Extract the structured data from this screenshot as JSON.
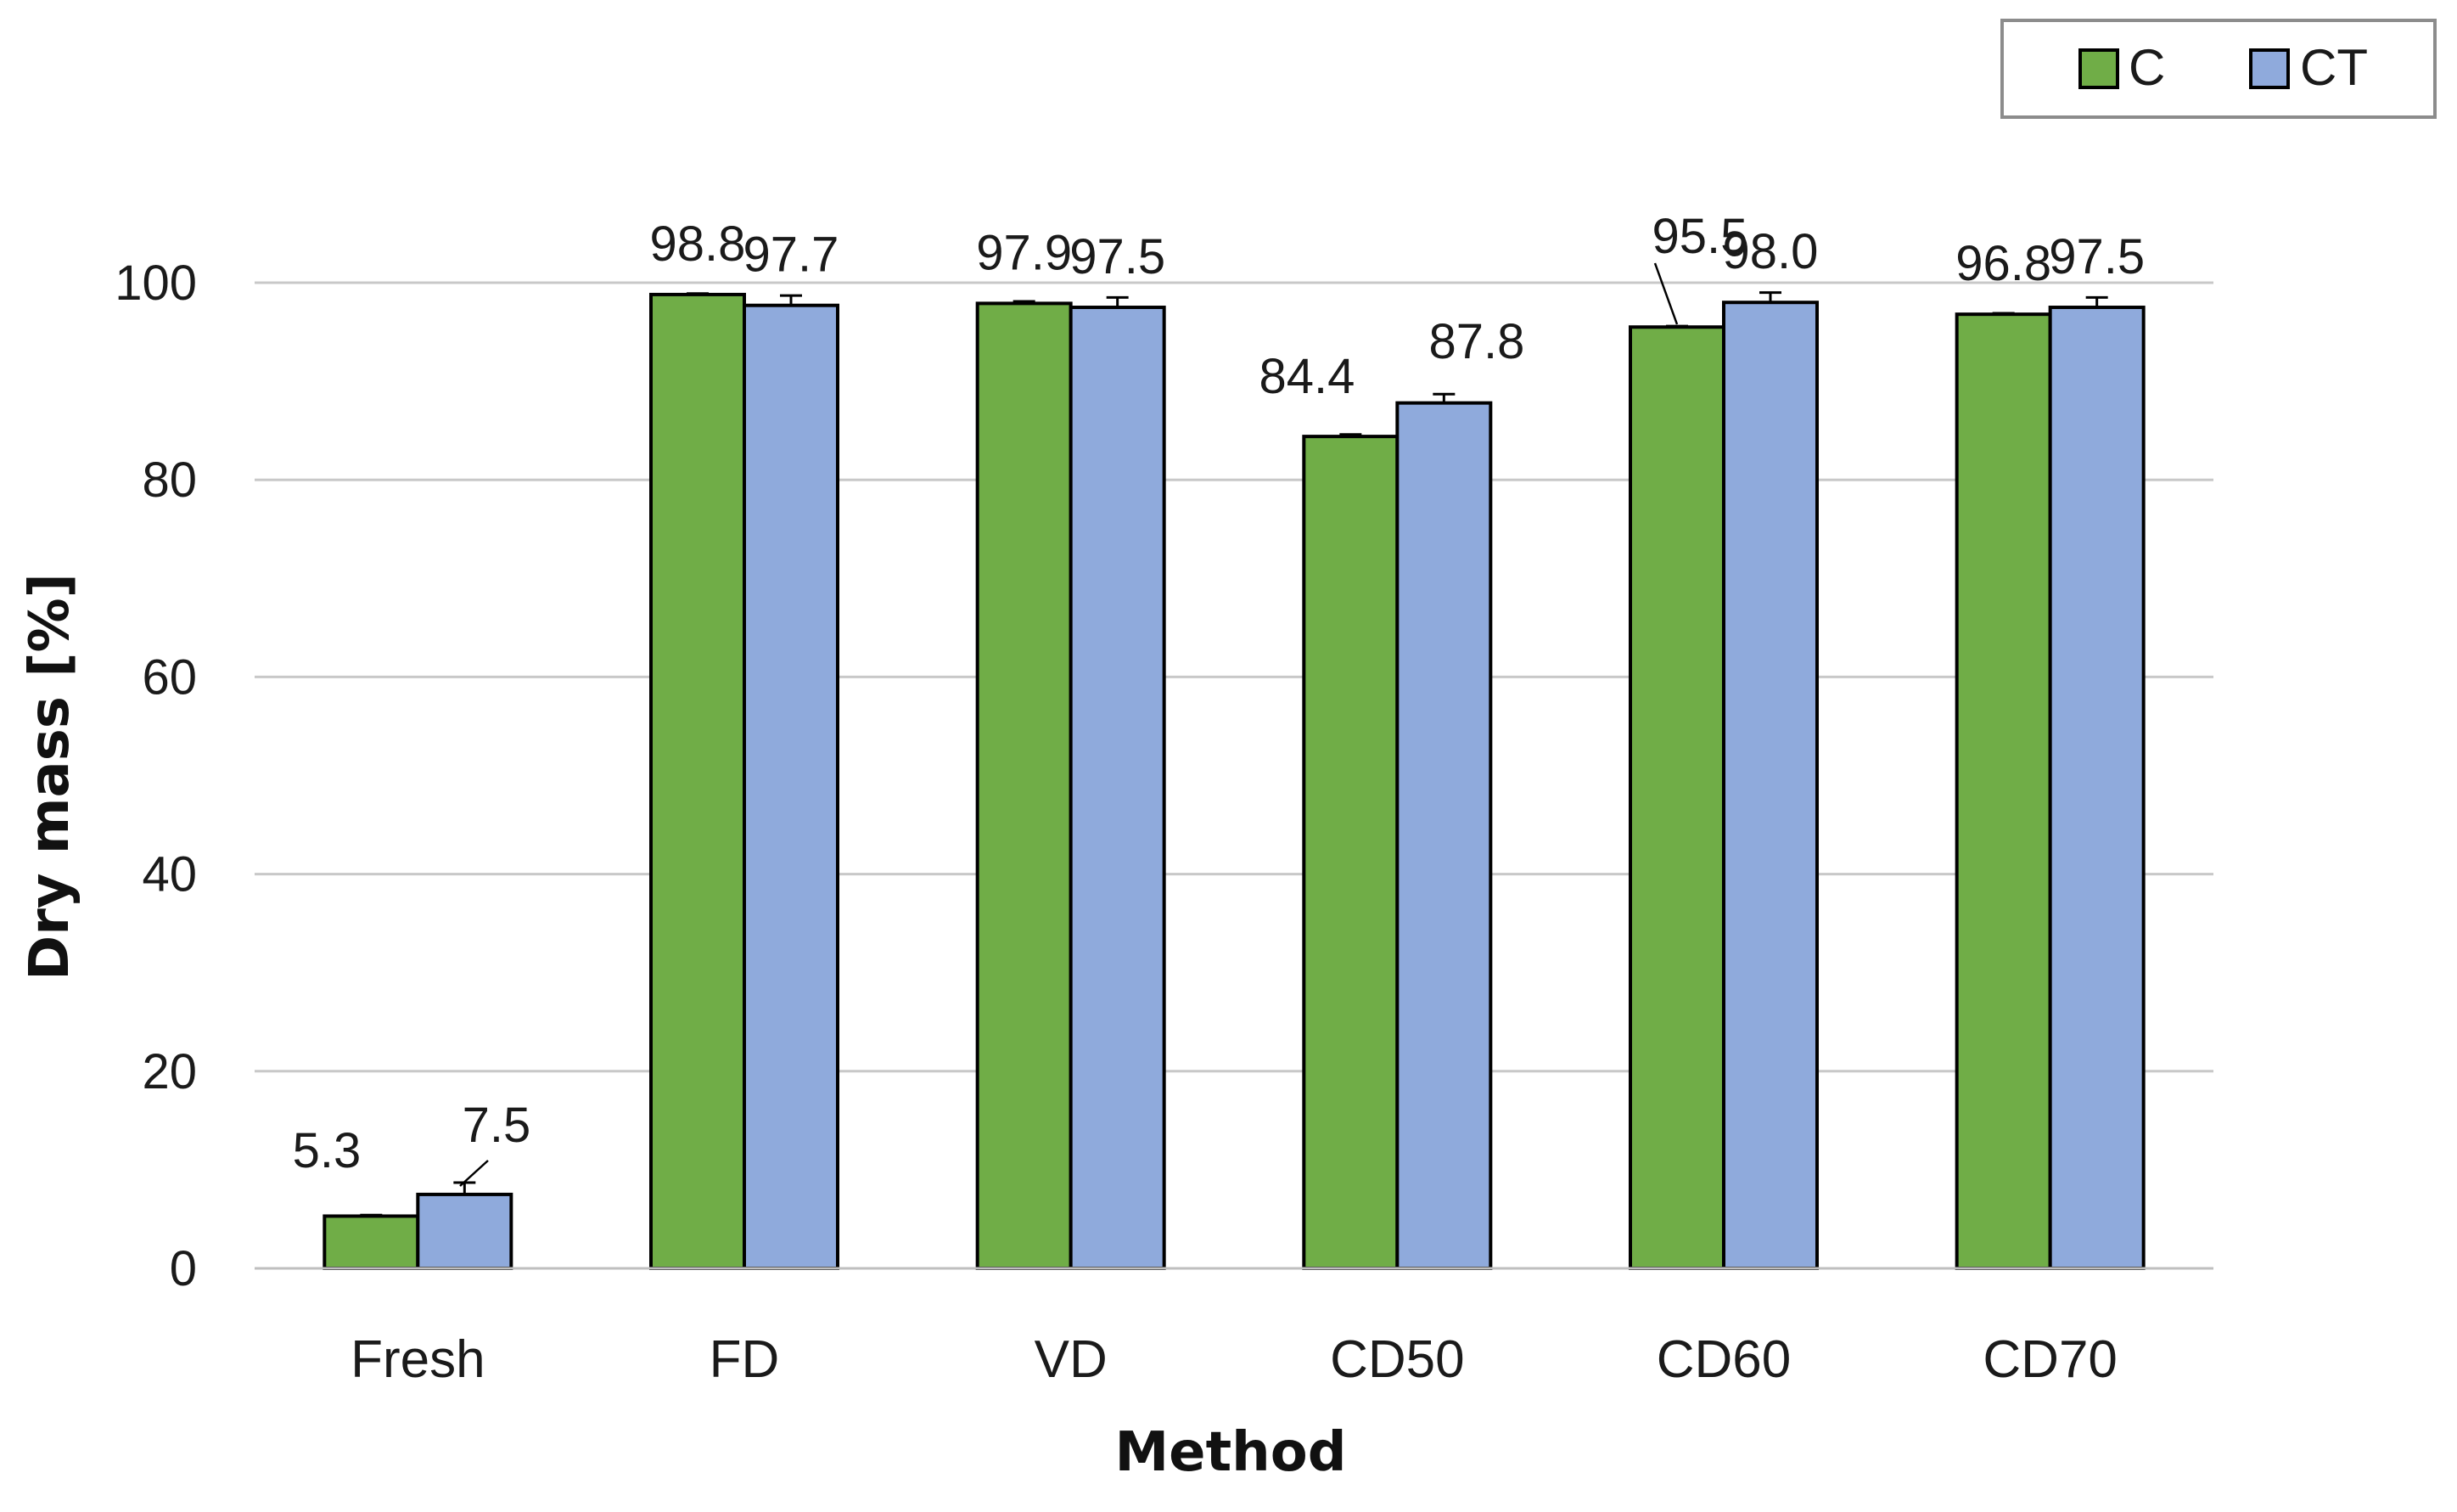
{
  "chart_data": {
    "type": "bar",
    "title": "",
    "xlabel": "Method",
    "ylabel": "Dry mass [%]",
    "categories": [
      "Fresh",
      "FD",
      "VD",
      "CD50",
      "CD60",
      "CD70"
    ],
    "ylim": [
      0,
      100
    ],
    "yticks": [
      0,
      20,
      40,
      60,
      80,
      100
    ],
    "ytick_labels": [
      "0",
      "20",
      "40",
      "60",
      "80",
      "100"
    ],
    "grid": true,
    "legend_position": "top-right",
    "series": [
      {
        "name": "C",
        "color": "#70ad47",
        "values": [
          5.3,
          98.8,
          97.9,
          84.4,
          95.5,
          96.8
        ],
        "labels": [
          "5.3",
          "98.8",
          "97.9",
          "84.4",
          "95.5",
          "96.8"
        ],
        "errors": [
          0.1,
          0.1,
          0.2,
          0.2,
          0.1,
          0.1
        ]
      },
      {
        "name": "CT",
        "color": "#8faadc",
        "values": [
          7.5,
          97.7,
          97.5,
          87.8,
          98.0,
          97.5
        ],
        "labels": [
          "7.5",
          "97.7",
          "97.5",
          "87.8",
          "98.0",
          "97.5"
        ],
        "errors": [
          1.2,
          1.0,
          1.0,
          0.9,
          1.0,
          1.0
        ]
      }
    ]
  }
}
